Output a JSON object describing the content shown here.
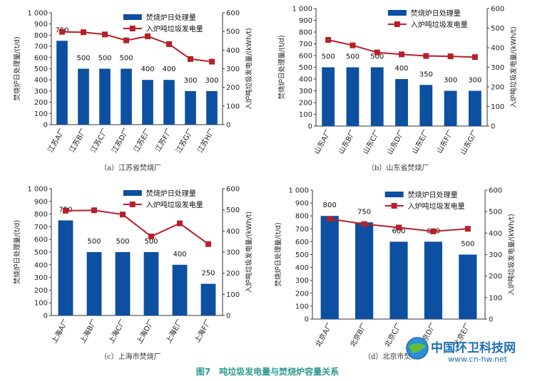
{
  "figure_title": "图7　吨垃圾发电量与焚烧炉容量关系",
  "watermark": {
    "name": "中国环卫科技网",
    "url": "www.cn-hw.net"
  },
  "colors": {
    "bar": "#0d4fa0",
    "line": "#b81f2a"
  },
  "chart_data": [
    {
      "type": "bar",
      "caption": "（a）江苏省焚烧厂",
      "categories": [
        "江苏A厂",
        "江苏B厂",
        "江苏C厂",
        "江苏D厂",
        "江苏E厂",
        "江苏F厂",
        "江苏G厂",
        "江苏H厂"
      ],
      "series": [
        {
          "name": "焚烧炉日处理量",
          "type": "bar",
          "axis": "left",
          "values": [
            750,
            500,
            500,
            500,
            400,
            400,
            300,
            300
          ]
        },
        {
          "name": "入炉吨垃圾发电量",
          "type": "line",
          "axis": "right",
          "values": [
            498,
            496,
            484,
            452,
            474,
            432,
            352,
            338
          ]
        }
      ],
      "ylabel": "焚烧炉日处理量/(t/d)",
      "y2label": "入炉吨垃圾发电量/(kWh/t)",
      "ylim": [
        0,
        1000
      ],
      "y2lim": [
        0,
        600
      ],
      "yticks": [
        "0",
        "100",
        "200",
        "300",
        "400",
        "500",
        "600",
        "700",
        "800",
        "900",
        "1 000"
      ],
      "y2ticks": [
        "0",
        "100",
        "200",
        "300",
        "400",
        "500",
        "600"
      ],
      "legend": "top-right",
      "data_labels": [
        "750",
        "500",
        "500",
        "500",
        "400",
        "400",
        "300",
        "300"
      ]
    },
    {
      "type": "bar",
      "caption": "（b）山东省焚烧厂",
      "categories": [
        "山东A厂",
        "山东B厂",
        "山东C厂",
        "山东D厂",
        "山东E厂",
        "山东F厂",
        "山东G厂"
      ],
      "series": [
        {
          "name": "焚烧炉日处理量",
          "type": "bar",
          "axis": "left",
          "values": [
            500,
            500,
            500,
            400,
            350,
            300,
            300
          ]
        },
        {
          "name": "入炉吨垃圾发电量",
          "type": "line",
          "axis": "right",
          "values": [
            440,
            412,
            376,
            366,
            358,
            356,
            352
          ]
        }
      ],
      "ylabel": "焚烧炉日处理量/(t/d)",
      "y2label": "入炉吨垃圾发电量/(kWh/t)",
      "ylim": [
        0,
        1000
      ],
      "y2lim": [
        0,
        600
      ],
      "yticks": [
        "0",
        "100",
        "200",
        "300",
        "400",
        "500",
        "600",
        "700",
        "800",
        "900",
        "1 000"
      ],
      "y2ticks": [
        "0",
        "100",
        "200",
        "300",
        "400",
        "500",
        "600"
      ],
      "legend": "top-right",
      "data_labels": [
        "500",
        "500",
        "500",
        "400",
        "350",
        "300",
        "300"
      ]
    },
    {
      "type": "bar",
      "caption": "（c）上海市焚烧厂",
      "categories": [
        "上海A厂",
        "上海B厂",
        "上海C厂",
        "上海D厂",
        "上海E厂",
        "上海F厂"
      ],
      "series": [
        {
          "name": "焚烧炉日处理量",
          "type": "bar",
          "axis": "left",
          "values": [
            750,
            500,
            500,
            500,
            400,
            250
          ]
        },
        {
          "name": "入炉吨垃圾发电量",
          "type": "line",
          "axis": "right",
          "values": [
            496,
            498,
            478,
            374,
            436,
            338
          ]
        }
      ],
      "ylabel": "焚烧炉日处理量/(t/d)",
      "y2label": "入炉吨垃圾发电量/(kWh/t)",
      "ylim": [
        0,
        1000
      ],
      "y2lim": [
        0,
        600
      ],
      "yticks": [
        "0",
        "100",
        "200",
        "300",
        "400",
        "500",
        "600",
        "700",
        "800",
        "900",
        "1 000"
      ],
      "y2ticks": [
        "0",
        "100",
        "200",
        "300",
        "400",
        "500",
        "600"
      ],
      "legend": "top-right",
      "data_labels": [
        "750",
        "500",
        "500",
        "500",
        "400",
        "250"
      ]
    },
    {
      "type": "bar",
      "caption": "（d）北京市焚烧厂",
      "categories": [
        "北京A厂",
        "北京B厂",
        "北京C厂",
        "北京D厂",
        "北京E厂"
      ],
      "series": [
        {
          "name": "焚烧炉日处理量",
          "type": "bar",
          "axis": "left",
          "values": [
            800,
            750,
            600,
            600,
            500
          ]
        },
        {
          "name": "入炉吨垃圾发电量",
          "type": "line",
          "axis": "right",
          "values": [
            466,
            442,
            426,
            408,
            420
          ]
        }
      ],
      "ylabel": "焚烧炉日处理量/(t/d)",
      "y2label": "入炉吨垃圾发电量/(kWh/t)",
      "ylim": [
        0,
        1000
      ],
      "y2lim": [
        0,
        600
      ],
      "yticks": [
        "0",
        "100",
        "200",
        "300",
        "400",
        "500",
        "600",
        "700",
        "800",
        "900",
        "1 000"
      ],
      "y2ticks": [
        "0",
        "100",
        "200",
        "300",
        "400",
        "500",
        "600"
      ],
      "legend": "top-right",
      "data_labels": [
        "800",
        "750",
        "600",
        "600",
        "500"
      ]
    }
  ]
}
